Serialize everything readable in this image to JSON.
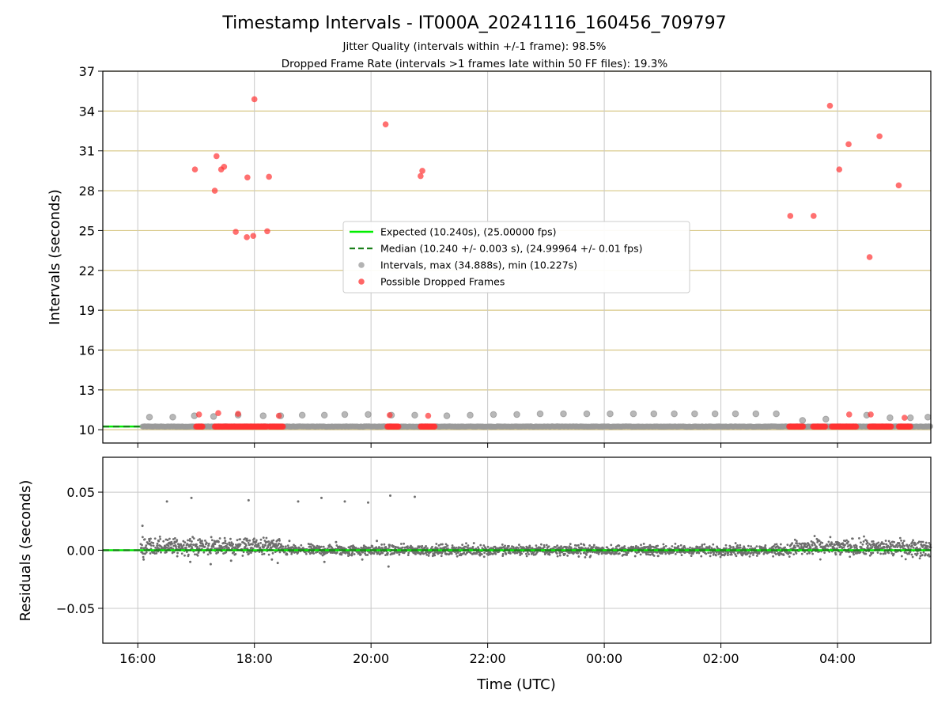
{
  "figure": {
    "title": "Timestamp Intervals - IT000A_20241116_160456_709797",
    "subtitle_lines": [
      "Jitter Quality (intervals within +/-1 frame): 98.5%",
      "Dropped Frame Rate (intervals >1 frames late within 50 FF files): 19.3%"
    ]
  },
  "colors": {
    "expected": "#00ee00",
    "median": "#1a7f1a",
    "intervals": "#9a9a9a",
    "dropped": "#ff3333",
    "residuals": "#6e6e6e",
    "hgrid": "#d8c888",
    "vgrid": "#c8c8c8"
  },
  "chart_data": [
    {
      "id": "top",
      "type": "scatter",
      "ylabel": "Intervals (seconds)",
      "xlim_hours": [
        15.4,
        29.6
      ],
      "ylim": [
        9.0,
        37.0
      ],
      "yticks": [
        10,
        13,
        16,
        19,
        22,
        25,
        28,
        31,
        34,
        37
      ],
      "xticks": [
        {
          "h": 16,
          "label": "16:00"
        },
        {
          "h": 18,
          "label": "18:00"
        },
        {
          "h": 20,
          "label": "20:00"
        },
        {
          "h": 22,
          "label": "22:00"
        },
        {
          "h": 24,
          "label": "00:00"
        },
        {
          "h": 26,
          "label": "02:00"
        },
        {
          "h": 28,
          "label": "04:00"
        }
      ],
      "grid": {
        "horizontal": true,
        "vertical": true
      },
      "expected_value": 10.24,
      "median_value": 10.24,
      "legend": {
        "placement": "center",
        "entries": [
          {
            "kind": "solid-line",
            "color_key": "expected",
            "label": "Expected (10.240s), (25.00000 fps)"
          },
          {
            "kind": "dashed-line",
            "color_key": "median",
            "label": "Median (10.240 +/- 0.003 s), (24.99964 +/- 0.01 fps)"
          },
          {
            "kind": "dot",
            "color_key": "intervals",
            "label": "Intervals, max (34.888s), min (10.227s)"
          },
          {
            "kind": "dot",
            "color_key": "dropped",
            "label": "Possible Dropped Frames"
          }
        ]
      },
      "series": [
        {
          "name": "Intervals, max (34.888s), min (10.227s)",
          "color_key": "intervals",
          "x_hours": [
            16.2,
            16.6,
            16.97,
            17.3,
            17.72,
            18.15,
            18.45,
            18.82,
            19.2,
            19.55,
            19.95,
            20.35,
            20.75,
            21.3,
            21.7,
            22.1,
            22.5,
            22.9,
            23.3,
            23.7,
            24.1,
            24.5,
            24.85,
            25.2,
            25.55,
            25.9,
            26.25,
            26.6,
            26.95,
            27.4,
            27.8,
            28.5,
            28.9,
            29.25,
            29.55
          ],
          "y": [
            10.95,
            10.95,
            11.05,
            11.0,
            11.1,
            11.05,
            11.05,
            11.1,
            11.1,
            11.15,
            11.15,
            11.1,
            11.1,
            11.05,
            11.1,
            11.15,
            11.15,
            11.2,
            11.2,
            11.2,
            11.2,
            11.2,
            11.2,
            11.2,
            11.2,
            11.2,
            11.2,
            11.2,
            11.2,
            10.7,
            10.8,
            11.1,
            10.9,
            10.9,
            10.95
          ]
        },
        {
          "name": "Possible Dropped Frames",
          "color_key": "dropped",
          "x_hours": [
            16.98,
            17.05,
            17.32,
            17.35,
            17.38,
            17.43,
            17.48,
            17.68,
            17.72,
            17.87,
            17.88,
            17.98,
            18.0,
            18.22,
            18.25,
            18.42,
            20.25,
            20.32,
            20.85,
            20.88,
            20.98,
            27.19,
            27.59,
            27.87,
            28.03,
            28.19,
            28.2,
            28.55,
            28.57,
            28.72,
            29.05,
            29.15
          ],
          "y": [
            29.6,
            11.15,
            28.0,
            30.6,
            11.25,
            29.6,
            29.8,
            24.9,
            11.2,
            24.5,
            29.0,
            24.6,
            34.888,
            24.95,
            29.05,
            11.05,
            33.0,
            11.1,
            29.1,
            29.5,
            11.05,
            26.1,
            26.1,
            34.4,
            29.6,
            31.5,
            11.15,
            23.0,
            11.15,
            32.1,
            28.4,
            10.9
          ],
          "cluster_ranges_hours": [
            [
              17.0,
              17.12
            ],
            [
              17.32,
              18.22
            ],
            [
              18.26,
              18.5
            ],
            [
              20.28,
              20.48
            ],
            [
              20.85,
              21.1
            ],
            [
              27.17,
              27.42
            ],
            [
              27.58,
              27.8
            ],
            [
              27.9,
              28.33
            ],
            [
              28.55,
              28.93
            ],
            [
              29.05,
              29.26
            ]
          ],
          "cluster_y": 10.24
        }
      ]
    },
    {
      "id": "bottom",
      "type": "scatter",
      "xlabel": "Time (UTC)",
      "ylabel": "Residuals (seconds)",
      "xlim_hours": [
        15.4,
        29.6
      ],
      "ylim": [
        -0.08,
        0.08
      ],
      "yticks": [
        {
          "v": 0.05,
          "label": "0.05"
        },
        {
          "v": 0.0,
          "label": "0.00"
        },
        {
          "v": -0.05,
          "label": "−0.05"
        }
      ],
      "xticks": [
        {
          "h": 16,
          "label": "16:00"
        },
        {
          "h": 18,
          "label": "18:00"
        },
        {
          "h": 20,
          "label": "20:00"
        },
        {
          "h": 22,
          "label": "22:00"
        },
        {
          "h": 24,
          "label": "00:00"
        },
        {
          "h": 26,
          "label": "02:00"
        },
        {
          "h": 28,
          "label": "04:00"
        }
      ],
      "grid": {
        "horizontal": true,
        "vertical": true
      },
      "zero_line": 0.0,
      "series": [
        {
          "name": "Residuals",
          "color_key": "residuals",
          "x_hours": [
            16.08,
            16.5,
            16.92,
            17.9,
            18.75,
            19.15,
            19.55,
            19.95,
            20.33,
            20.75,
            16.1,
            16.9,
            17.25,
            17.6,
            18.3,
            18.4,
            19.2,
            19.85,
            20.3,
            16.2,
            16.65,
            17.1,
            17.5,
            18.0,
            18.6,
            19.4,
            20.1
          ],
          "y": [
            0.021,
            0.042,
            0.045,
            0.043,
            0.042,
            0.045,
            0.042,
            0.041,
            0.047,
            0.046,
            -0.008,
            -0.01,
            -0.012,
            -0.009,
            -0.008,
            -0.011,
            -0.01,
            -0.008,
            -0.014,
            0.008,
            0.007,
            0.008,
            0.008,
            0.007,
            0.008,
            0.007,
            0.008
          ]
        }
      ],
      "density_bands": [
        {
          "from_h": 16.05,
          "to_h": 18.45,
          "center": 0.003,
          "spread": 0.008
        },
        {
          "from_h": 18.45,
          "to_h": 20.95,
          "center": 0.0,
          "spread": 0.005
        },
        {
          "from_h": 20.95,
          "to_h": 27.2,
          "center": 0.0,
          "spread": 0.005
        },
        {
          "from_h": 27.2,
          "to_h": 29.6,
          "center": 0.002,
          "spread": 0.008
        }
      ]
    }
  ]
}
